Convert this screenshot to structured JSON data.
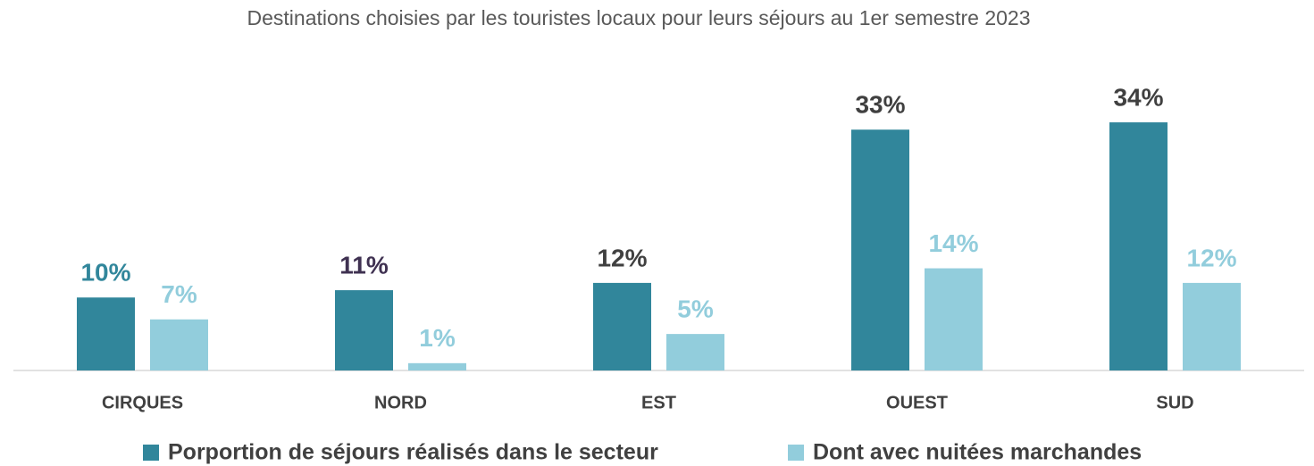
{
  "chart_data": {
    "type": "bar",
    "title": "Destinations choisies par les touristes locaux pour leurs séjours au 1er semestre 2023",
    "categories": [
      "CIRQUES",
      "NORD",
      "EST",
      "OUEST",
      "SUD"
    ],
    "series": [
      {
        "name": "Porportion de séjours réalisés dans le secteur",
        "color": "#31869b",
        "values": [
          10,
          11,
          12,
          33,
          34
        ],
        "value_labels": [
          "10%",
          "11%",
          "12%",
          "33%",
          "34%"
        ],
        "label_colors": [
          "#31869b",
          "#3f3151",
          "#404040",
          "#404040",
          "#404040"
        ]
      },
      {
        "name": "Dont avec nuitées marchandes",
        "color": "#92cddc",
        "values": [
          7,
          1,
          5,
          14,
          12
        ],
        "value_labels": [
          "7%",
          "1%",
          "5%",
          "14%",
          "12%"
        ],
        "label_colors": [
          "#92cddc",
          "#92cddc",
          "#92cddc",
          "#92cddc",
          "#92cddc"
        ]
      }
    ],
    "ylim": [
      0,
      40
    ],
    "legend": "bottom"
  }
}
